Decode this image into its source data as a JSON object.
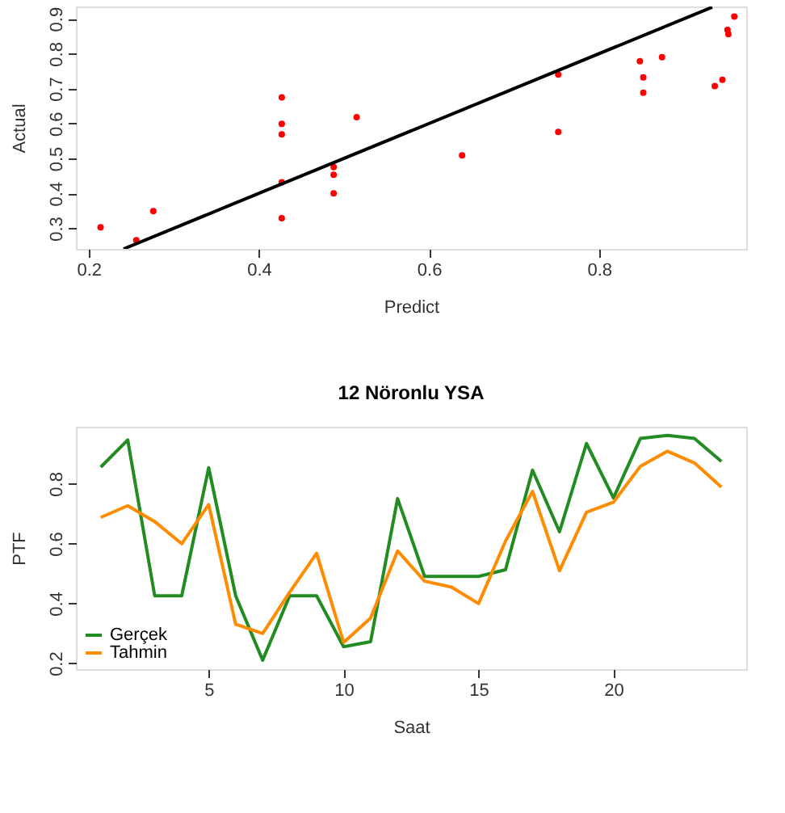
{
  "chart_data": [
    {
      "type": "scatter",
      "xlabel": "Predict",
      "ylabel": "Actual",
      "xlim": [
        0.185,
        0.973
      ],
      "ylim": [
        0.241,
        0.935
      ],
      "xticks": [
        0.2,
        0.4,
        0.6,
        0.8
      ],
      "yticks": [
        0.3,
        0.4,
        0.5,
        0.6,
        0.7,
        0.8,
        0.9
      ],
      "grid": false,
      "legend": false,
      "series": [
        {
          "color": "#ff0000",
          "marker": "circle",
          "x": [
            0.214,
            0.256,
            0.276,
            0.427,
            0.427,
            0.427,
            0.427,
            0.427,
            0.488,
            0.488,
            0.488,
            0.515,
            0.639,
            0.752,
            0.752,
            0.848,
            0.852,
            0.852,
            0.874,
            0.936,
            0.945,
            0.951,
            0.952,
            0.959
          ],
          "values": [
            0.303,
            0.266,
            0.349,
            0.675,
            0.599,
            0.569,
            0.432,
            0.329,
            0.475,
            0.453,
            0.4,
            0.618,
            0.509,
            0.74,
            0.576,
            0.778,
            0.732,
            0.688,
            0.79,
            0.707,
            0.725,
            0.868,
            0.856,
            0.906
          ]
        },
        {
          "type": "line",
          "color": "#000000",
          "x": [
            0.241,
            0.933
          ],
          "values": [
            0.241,
            0.933
          ]
        }
      ]
    },
    {
      "type": "line",
      "title": "12 Nöronlu YSA",
      "xlabel": "Saat",
      "ylabel": "PTF",
      "x": [
        1,
        2,
        3,
        4,
        5,
        6,
        7,
        8,
        9,
        10,
        11,
        12,
        13,
        14,
        15,
        16,
        17,
        18,
        19,
        20,
        21,
        22,
        23,
        24
      ],
      "xlim": [
        0.08,
        24.92
      ],
      "xticks": [
        5,
        10,
        15,
        20
      ],
      "ylim": [
        0.18,
        0.99
      ],
      "yticks": [
        0.2,
        0.4,
        0.6,
        0.8
      ],
      "grid": false,
      "legend": "bottom left",
      "line_style": "solid",
      "series": [
        {
          "name": "Gerçek",
          "color": "#228b22",
          "values": [
            0.855,
            0.946,
            0.425,
            0.425,
            0.853,
            0.425,
            0.21,
            0.425,
            0.425,
            0.255,
            0.272,
            0.75,
            0.49,
            0.49,
            0.49,
            0.512,
            0.845,
            0.639,
            0.934,
            0.752,
            0.951,
            0.961,
            0.951,
            0.874
          ]
        },
        {
          "name": "Tahmin",
          "color": "#ff8c00",
          "values": [
            0.687,
            0.726,
            0.673,
            0.599,
            0.73,
            0.33,
            0.299,
            0.437,
            0.567,
            0.269,
            0.351,
            0.575,
            0.474,
            0.454,
            0.399,
            0.608,
            0.774,
            0.509,
            0.704,
            0.738,
            0.858,
            0.908,
            0.869,
            0.788
          ]
        }
      ]
    }
  ]
}
